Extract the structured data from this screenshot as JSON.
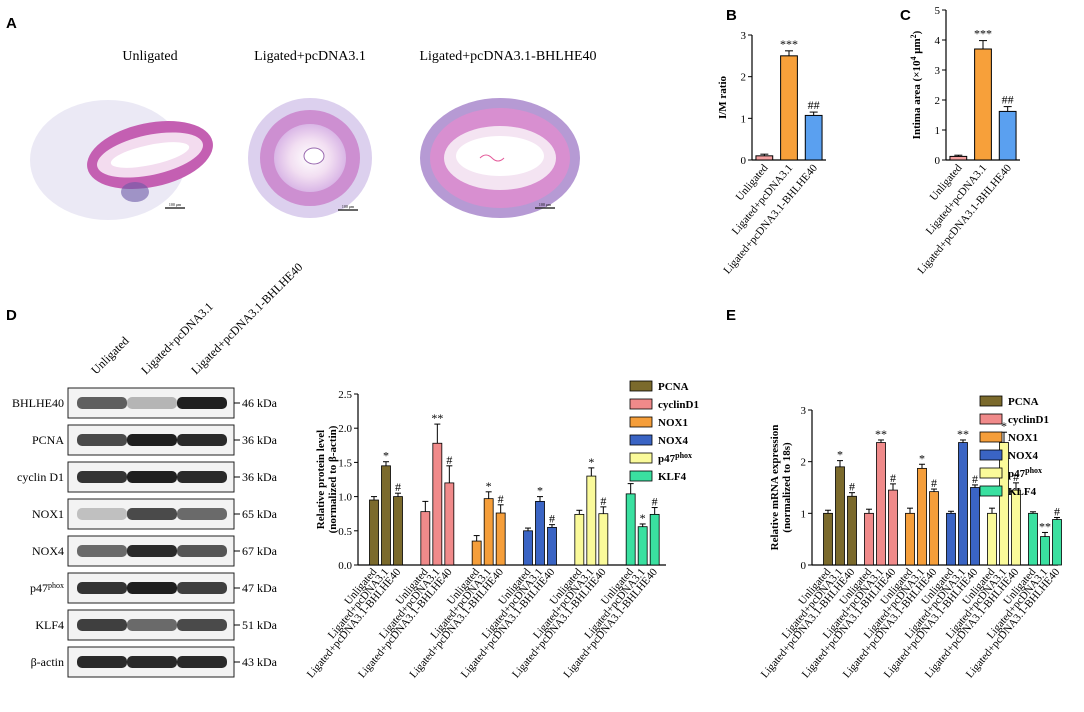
{
  "panels": {
    "A": {
      "label": "A",
      "image_titles": [
        "Unligated",
        "Ligated+pcDNA3.1",
        "Ligated+pcDNA3.1-BHLHE40"
      ],
      "scalebar_texts": [
        "100 μm",
        "100 μm",
        "100 μm"
      ]
    },
    "B": {
      "label": "B"
    },
    "C": {
      "label": "C"
    },
    "D": {
      "label": "D",
      "lanes": [
        "Unligated",
        "Ligated+pcDNA3.1",
        "Ligated+pcDNA3.1-BHLHE40"
      ],
      "blots": [
        {
          "protein": "BHLHE40",
          "mw": "46 kDa",
          "intensity": [
            0.65,
            0.25,
            0.95
          ]
        },
        {
          "protein": "PCNA",
          "mw": "36 kDa",
          "intensity": [
            0.75,
            0.95,
            0.9
          ]
        },
        {
          "protein": "cyclin D1",
          "mw": "36 kDa",
          "intensity": [
            0.85,
            0.95,
            0.9
          ]
        },
        {
          "protein": "NOX1",
          "mw": "65 kDa",
          "intensity": [
            0.2,
            0.75,
            0.6
          ]
        },
        {
          "protein": "NOX4",
          "mw": "67 kDa",
          "intensity": [
            0.6,
            0.9,
            0.7
          ]
        },
        {
          "protein": "p47",
          "protein_sup": "phox",
          "mw": "47 kDa",
          "intensity": [
            0.85,
            0.95,
            0.8
          ]
        },
        {
          "protein": "KLF4",
          "mw": "51 kDa",
          "intensity": [
            0.8,
            0.6,
            0.75
          ]
        },
        {
          "protein": "β-actin",
          "mw": "43 kDa",
          "intensity": [
            0.9,
            0.9,
            0.9
          ]
        }
      ]
    },
    "E": {
      "label": "E"
    }
  },
  "colors": {
    "PCNA": "#7b6a2c",
    "cyclinD1": "#f08a8a",
    "NOX1": "#f59e3a",
    "NOX4": "#3a64c4",
    "p47phox": "#fafa9a",
    "KLF4": "#3ae0a0",
    "unligated_bar": "#f4a0a0",
    "ligated_bar": "#f7a03a",
    "bhlhe40_bar": "#5aa0f0"
  },
  "chart_data": [
    {
      "id": "B",
      "type": "bar",
      "categories": [
        "Unligated",
        "Ligated+pcDNA3.1",
        "Ligated+pcDNA3.1-BHLHE40"
      ],
      "values": [
        0.1,
        2.5,
        1.07
      ],
      "errors": [
        0.04,
        0.12,
        0.08
      ],
      "annotations": [
        "",
        "***",
        "##"
      ],
      "ylabel": "I/M ratio",
      "ylim": [
        0,
        3
      ],
      "yticks": [
        0,
        1,
        2,
        3
      ]
    },
    {
      "id": "C",
      "type": "bar",
      "categories": [
        "Unligated",
        "Ligated+pcDNA3.1",
        "Ligated+pcDNA3.1-BHLHE40"
      ],
      "values": [
        0.12,
        3.7,
        1.62
      ],
      "errors": [
        0.04,
        0.28,
        0.16
      ],
      "annotations": [
        "",
        "***",
        "##"
      ],
      "ylabel": "Intima area (×10",
      "ylabel_sup": "4",
      "ylabel_rest": " μm",
      "ylabel_sup2": "2",
      "ylabel_end": ")",
      "ylim": [
        0,
        5
      ],
      "yticks": [
        0,
        1,
        2,
        3,
        4,
        5
      ]
    },
    {
      "id": "D",
      "type": "bar",
      "x": [
        "Unligated",
        "Ligated+pcDNA3.1",
        "Ligated+pcDNA3.1-BHLHE40"
      ],
      "ylabel": "Relative  protein level",
      "ylabel2": "(normalized to β-actin)",
      "ylim": [
        0,
        2.5
      ],
      "yticks": [
        0,
        0.5,
        1,
        1.5,
        2,
        2.5
      ],
      "yticklabels": [
        "0.0",
        "0.5",
        "1.0",
        "1.5",
        "2.0",
        "2.5"
      ],
      "series": [
        {
          "name": "PCNA",
          "values": [
            0.95,
            1.45,
            1.0
          ],
          "errors": [
            0.05,
            0.06,
            0.05
          ],
          "annotations": [
            "",
            "*",
            "#"
          ]
        },
        {
          "name": "cyclinD1",
          "values": [
            0.78,
            1.78,
            1.2
          ],
          "errors": [
            0.15,
            0.28,
            0.25
          ],
          "annotations": [
            "",
            "**",
            "#"
          ]
        },
        {
          "name": "NOX1",
          "values": [
            0.35,
            0.97,
            0.76
          ],
          "errors": [
            0.08,
            0.1,
            0.12
          ],
          "annotations": [
            "",
            "*",
            "#"
          ]
        },
        {
          "name": "NOX4",
          "values": [
            0.5,
            0.93,
            0.55
          ],
          "errors": [
            0.04,
            0.07,
            0.04
          ],
          "annotations": [
            "",
            "*",
            "#"
          ]
        },
        {
          "name": "p47",
          "name_sup": "phox",
          "values": [
            0.74,
            1.3,
            0.75
          ],
          "errors": [
            0.06,
            0.12,
            0.1
          ],
          "annotations": [
            "",
            "*",
            "#"
          ]
        },
        {
          "name": "KLF4",
          "values": [
            1.04,
            0.56,
            0.74
          ],
          "errors": [
            0.15,
            0.04,
            0.1
          ],
          "annotations": [
            "",
            "*",
            "#"
          ]
        }
      ]
    },
    {
      "id": "E",
      "type": "bar",
      "x": [
        "Unligated",
        "Ligated+pcDNA3.1",
        "Ligated+pcDNA3.1-BHLHE40"
      ],
      "ylabel": "Relative mRNA expression",
      "ylabel2": "(normalized to 18s)",
      "ylim": [
        0,
        3
      ],
      "yticks": [
        0,
        1,
        2,
        3
      ],
      "yticklabels": [
        "0",
        "1",
        "2",
        "3"
      ],
      "series": [
        {
          "name": "PCNA",
          "values": [
            1.0,
            1.9,
            1.33
          ],
          "errors": [
            0.06,
            0.12,
            0.07
          ],
          "annotations": [
            "",
            "*",
            "#"
          ]
        },
        {
          "name": "cyclinD1",
          "values": [
            1.0,
            2.37,
            1.45
          ],
          "errors": [
            0.08,
            0.05,
            0.12
          ],
          "annotations": [
            "",
            "**",
            "#"
          ]
        },
        {
          "name": "NOX1",
          "values": [
            1.0,
            1.87,
            1.42
          ],
          "errors": [
            0.1,
            0.08,
            0.05
          ],
          "annotations": [
            "",
            "*",
            "#"
          ]
        },
        {
          "name": "NOX4",
          "values": [
            1.0,
            2.37,
            1.5
          ],
          "errors": [
            0.04,
            0.05,
            0.05
          ],
          "annotations": [
            "",
            "**",
            "#"
          ]
        },
        {
          "name": "p47",
          "name_sup": "phox",
          "values": [
            1.0,
            2.37,
            1.45
          ],
          "errors": [
            0.1,
            0.2,
            0.14
          ],
          "annotations": [
            "",
            "*",
            "#"
          ]
        },
        {
          "name": "KLF4",
          "values": [
            1.0,
            0.55,
            0.88
          ],
          "errors": [
            0.03,
            0.08,
            0.04
          ],
          "annotations": [
            "",
            "**",
            "#"
          ]
        }
      ]
    }
  ]
}
